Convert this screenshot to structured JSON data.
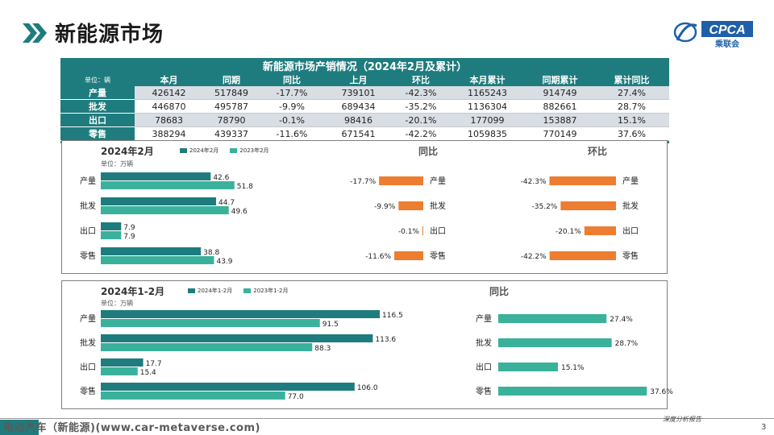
{
  "page": {
    "title": "新能源市场",
    "logo_text": "CPCA",
    "logo_sub": "乘联会",
    "footer_source": "电动汽车（新能源)(www.car-metaverse.com)",
    "footer_tag": "深度分析报告",
    "page_number": "3"
  },
  "colors": {
    "dark_teal": "#1f7c7e",
    "light_teal": "#3ab19b",
    "orange": "#ed7d31",
    "row_alt": "#d9dee4"
  },
  "table": {
    "caption": "新能源市场产销情况（2024年2月及累计）",
    "unit": "单位：辆",
    "headers": [
      "本月",
      "同期",
      "同比",
      "上月",
      "环比",
      "本月累计",
      "同期累计",
      "累计同比"
    ],
    "rows": [
      {
        "label": "产量",
        "cells": [
          "426142",
          "517849",
          "-17.7%",
          "739101",
          "-42.3%",
          "1165243",
          "914749",
          "27.4%"
        ]
      },
      {
        "label": "批发",
        "cells": [
          "446870",
          "495787",
          "-9.9%",
          "689434",
          "-35.2%",
          "1136304",
          "882661",
          "28.7%"
        ]
      },
      {
        "label": "出口",
        "cells": [
          "78683",
          "78790",
          "-0.1%",
          "98416",
          "-20.1%",
          "177099",
          "153887",
          "15.1%"
        ]
      },
      {
        "label": "零售",
        "cells": [
          "388294",
          "439337",
          "-11.6%",
          "671541",
          "-42.2%",
          "1059835",
          "770149",
          "37.6%"
        ]
      }
    ]
  },
  "chart_data": [
    {
      "type": "bar",
      "orientation": "horizontal",
      "title": "2024年2月",
      "unit": "单位：万辆",
      "categories": [
        "产量",
        "批发",
        "出口",
        "零售"
      ],
      "series": [
        {
          "name": "2024年2月",
          "values": [
            42.6,
            44.7,
            7.9,
            38.8
          ]
        },
        {
          "name": "2023年2月",
          "values": [
            51.8,
            49.6,
            7.9,
            43.9
          ]
        }
      ]
    },
    {
      "type": "bar",
      "orientation": "horizontal",
      "title": "同比",
      "categories": [
        "产量",
        "批发",
        "出口",
        "零售"
      ],
      "values": [
        -17.7,
        -9.9,
        -0.1,
        -11.6
      ],
      "labels": [
        "-17.7%",
        "-9.9%",
        "-0.1%",
        "-11.6%"
      ]
    },
    {
      "type": "bar",
      "orientation": "horizontal",
      "title": "环比",
      "categories": [
        "产量",
        "批发",
        "出口",
        "零售"
      ],
      "values": [
        -42.3,
        -35.2,
        -20.1,
        -42.2
      ],
      "labels": [
        "-42.3%",
        "-35.2%",
        "-20.1%",
        "-42.2%"
      ]
    },
    {
      "type": "bar",
      "orientation": "horizontal",
      "title": "2024年1-2月",
      "unit": "单位：万辆",
      "categories": [
        "产量",
        "批发",
        "出口",
        "零售"
      ],
      "series": [
        {
          "name": "2024年1-2月",
          "values": [
            116.5,
            113.6,
            17.7,
            106.0
          ]
        },
        {
          "name": "2023年1-2月",
          "values": [
            91.5,
            88.3,
            15.4,
            77.0
          ]
        }
      ]
    },
    {
      "type": "bar",
      "orientation": "horizontal",
      "title": "同比",
      "categories": [
        "产量",
        "批发",
        "出口",
        "零售"
      ],
      "values": [
        27.4,
        28.7,
        15.1,
        37.6
      ],
      "labels": [
        "27.4%",
        "28.7%",
        "15.1%",
        "37.6%"
      ]
    }
  ]
}
